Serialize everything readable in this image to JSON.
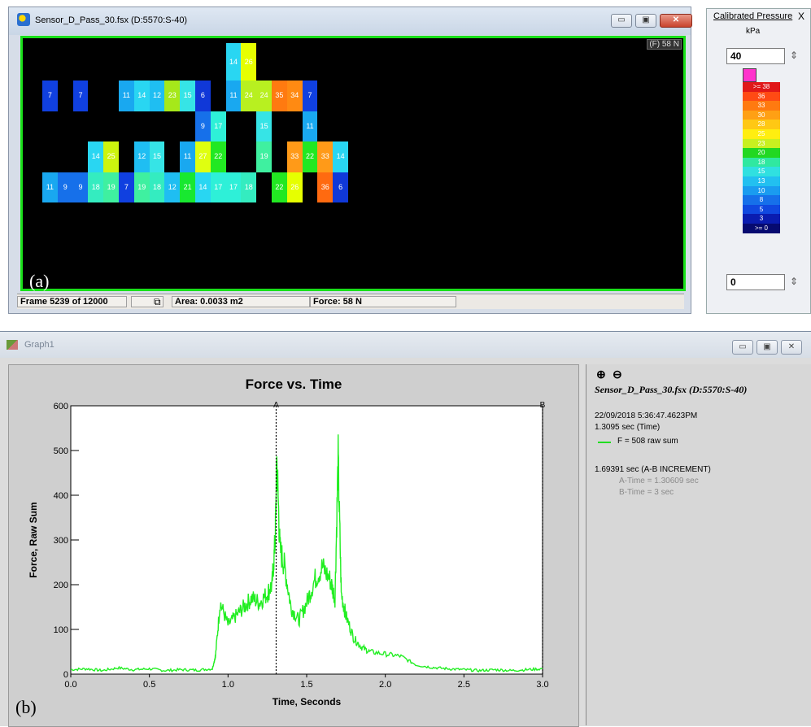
{
  "sensor_window": {
    "title": "Sensor_D_Pass_30.fsx (D:5570:S-40)",
    "force_badge": "(F) 58 N",
    "panel_label": "(a)",
    "status": {
      "frame": "Frame 5239 of 12000",
      "area": "Area: 0.0033 m2",
      "force": "Force: 58 N"
    }
  },
  "heatmap_cells": [
    {
      "row": 0,
      "col": 13,
      "v": "14",
      "color": "#29d6f2"
    },
    {
      "row": 0,
      "col": 14,
      "v": "26",
      "color": "#e6ff00"
    },
    {
      "row": 1,
      "col": 1,
      "v": "7",
      "color": "#1040e0"
    },
    {
      "row": 1,
      "col": 3,
      "v": "7",
      "color": "#1040e0"
    },
    {
      "row": 1,
      "col": 6,
      "v": "11",
      "color": "#19a8f0"
    },
    {
      "row": 1,
      "col": 7,
      "v": "14",
      "color": "#29d6f2"
    },
    {
      "row": 1,
      "col": 8,
      "v": "12",
      "color": "#1fbef2"
    },
    {
      "row": 1,
      "col": 9,
      "v": "23",
      "color": "#a6e81a"
    },
    {
      "row": 1,
      "col": 10,
      "v": "15",
      "color": "#36e4e6"
    },
    {
      "row": 1,
      "col": 11,
      "v": "6",
      "color": "#1038d8"
    },
    {
      "row": 1,
      "col": 13,
      "v": "11",
      "color": "#19a8f0"
    },
    {
      "row": 1,
      "col": 14,
      "v": "24",
      "color": "#b8f020"
    },
    {
      "row": 1,
      "col": 15,
      "v": "24",
      "color": "#b8f020"
    },
    {
      "row": 1,
      "col": 16,
      "v": "35",
      "color": "#ff7a10"
    },
    {
      "row": 1,
      "col": 17,
      "v": "34",
      "color": "#ff8a12"
    },
    {
      "row": 1,
      "col": 18,
      "v": "7",
      "color": "#1040e0"
    },
    {
      "row": 2,
      "col": 11,
      "v": "9",
      "color": "#1670ea"
    },
    {
      "row": 2,
      "col": 12,
      "v": "17",
      "color": "#2ef0d8"
    },
    {
      "row": 2,
      "col": 15,
      "v": "15",
      "color": "#36e4e6"
    },
    {
      "row": 2,
      "col": 18,
      "v": "11",
      "color": "#19a8f0"
    },
    {
      "row": 3,
      "col": 4,
      "v": "14",
      "color": "#29d6f2"
    },
    {
      "row": 3,
      "col": 5,
      "v": "25",
      "color": "#cdf50e"
    },
    {
      "row": 3,
      "col": 7,
      "v": "12",
      "color": "#1fbef2"
    },
    {
      "row": 3,
      "col": 8,
      "v": "15",
      "color": "#36e4e6"
    },
    {
      "row": 3,
      "col": 10,
      "v": "11",
      "color": "#19a8f0"
    },
    {
      "row": 3,
      "col": 11,
      "v": "27",
      "color": "#dfff10"
    },
    {
      "row": 3,
      "col": 12,
      "v": "22",
      "color": "#22e822"
    },
    {
      "row": 3,
      "col": 15,
      "v": "19",
      "color": "#3ff0a0"
    },
    {
      "row": 3,
      "col": 17,
      "v": "33",
      "color": "#ff9a18"
    },
    {
      "row": 3,
      "col": 18,
      "v": "22",
      "color": "#22e822"
    },
    {
      "row": 3,
      "col": 19,
      "v": "33",
      "color": "#ff9a18"
    },
    {
      "row": 3,
      "col": 20,
      "v": "14",
      "color": "#29d6f2"
    },
    {
      "row": 4,
      "col": 1,
      "v": "11",
      "color": "#19a8f0"
    },
    {
      "row": 4,
      "col": 2,
      "v": "9",
      "color": "#1670ea"
    },
    {
      "row": 4,
      "col": 3,
      "v": "9",
      "color": "#1670ea"
    },
    {
      "row": 4,
      "col": 4,
      "v": "18",
      "color": "#34ecc0"
    },
    {
      "row": 4,
      "col": 5,
      "v": "19",
      "color": "#3ff0a0"
    },
    {
      "row": 4,
      "col": 6,
      "v": "7",
      "color": "#1040e0"
    },
    {
      "row": 4,
      "col": 7,
      "v": "19",
      "color": "#3ff0a0"
    },
    {
      "row": 4,
      "col": 8,
      "v": "18",
      "color": "#34ecc0"
    },
    {
      "row": 4,
      "col": 9,
      "v": "12",
      "color": "#1fbef2"
    },
    {
      "row": 4,
      "col": 10,
      "v": "21",
      "color": "#18e830"
    },
    {
      "row": 4,
      "col": 11,
      "v": "14",
      "color": "#29d6f2"
    },
    {
      "row": 4,
      "col": 12,
      "v": "17",
      "color": "#2ef0d8"
    },
    {
      "row": 4,
      "col": 13,
      "v": "17",
      "color": "#2ef0d8"
    },
    {
      "row": 4,
      "col": 14,
      "v": "18",
      "color": "#34ecc0"
    },
    {
      "row": 4,
      "col": 16,
      "v": "22",
      "color": "#22e822"
    },
    {
      "row": 4,
      "col": 17,
      "v": "26",
      "color": "#e6ff00"
    },
    {
      "row": 4,
      "col": 19,
      "v": "36",
      "color": "#ff6a10"
    },
    {
      "row": 4,
      "col": 20,
      "v": "6",
      "color": "#1038d8"
    }
  ],
  "legend": {
    "title": "Calibrated Pressure",
    "close": "X",
    "unit": "kPa",
    "max_value": "40",
    "min_value": "0",
    "scale": [
      {
        "label": ">= 38",
        "color": "#e01818"
      },
      {
        "label": "36",
        "color": "#ff4a14"
      },
      {
        "label": "33",
        "color": "#ff7a10"
      },
      {
        "label": "30",
        "color": "#ffa014"
      },
      {
        "label": "28",
        "color": "#ffc814"
      },
      {
        "label": "25",
        "color": "#ffee10"
      },
      {
        "label": "23",
        "color": "#c8f020"
      },
      {
        "label": "20",
        "color": "#22d822"
      },
      {
        "label": "18",
        "color": "#30e8a0"
      },
      {
        "label": "15",
        "color": "#30e0e0"
      },
      {
        "label": "13",
        "color": "#22c0f0"
      },
      {
        "label": "10",
        "color": "#1a9cf0"
      },
      {
        "label": "8",
        "color": "#1670ea"
      },
      {
        "label": "5",
        "color": "#1048e0"
      },
      {
        "label": "3",
        "color": "#0a1cb0"
      },
      {
        "label": ">= 0",
        "color": "#060a70"
      }
    ]
  },
  "graph_window": {
    "title": "Graph1",
    "panel_label": "(b)",
    "info": {
      "source": "Sensor_D_Pass_30.fsx (D:5570:S-40)",
      "datetime": "22/09/2018 5:36:47.4623PM",
      "time": "1.3095 sec (Time)",
      "series_value": "F = 508 raw sum",
      "increment": "1.69391 sec (A-B INCREMENT)",
      "a_time": "A-Time = 1.30609 sec",
      "b_time": "B-Time = 3 sec"
    }
  },
  "chart_data": {
    "type": "line",
    "title": "Force vs. Time",
    "xlabel": "Time, Seconds",
    "ylabel": "Force, Raw Sum",
    "xlim": [
      0,
      3
    ],
    "ylim": [
      0,
      600
    ],
    "xticks": [
      "0.0",
      "0.5",
      "1.0",
      "1.5",
      "2.0",
      "2.5",
      "3.0"
    ],
    "yticks": [
      "0",
      "100",
      "200",
      "300",
      "400",
      "500",
      "600"
    ],
    "markers": [
      {
        "label": "A",
        "x": 1.306
      },
      {
        "label": "B",
        "x": 3.0
      }
    ],
    "line_color": "#22ee22",
    "series": [
      {
        "values_x": [
          0,
          0.1,
          0.2,
          0.3,
          0.4,
          0.5,
          0.6,
          0.7,
          0.8,
          0.9,
          0.92,
          0.95,
          1.0,
          1.05,
          1.1,
          1.15,
          1.2,
          1.25,
          1.28,
          1.3,
          1.31,
          1.33,
          1.36,
          1.4,
          1.45,
          1.5,
          1.55,
          1.6,
          1.65,
          1.68,
          1.7,
          1.72,
          1.75,
          1.8,
          1.85,
          1.9,
          2.0,
          2.1,
          2.2,
          2.3,
          2.4,
          2.5,
          2.6,
          2.7,
          2.8,
          2.9,
          3.0
        ],
        "values_y": [
          10,
          12,
          8,
          14,
          10,
          12,
          8,
          10,
          9,
          12,
          40,
          160,
          110,
          130,
          150,
          170,
          160,
          180,
          200,
          300,
          480,
          280,
          240,
          150,
          120,
          160,
          210,
          240,
          210,
          170,
          480,
          180,
          130,
          80,
          60,
          50,
          45,
          40,
          20,
          15,
          12,
          10,
          8,
          10,
          8,
          10,
          12
        ]
      }
    ]
  }
}
